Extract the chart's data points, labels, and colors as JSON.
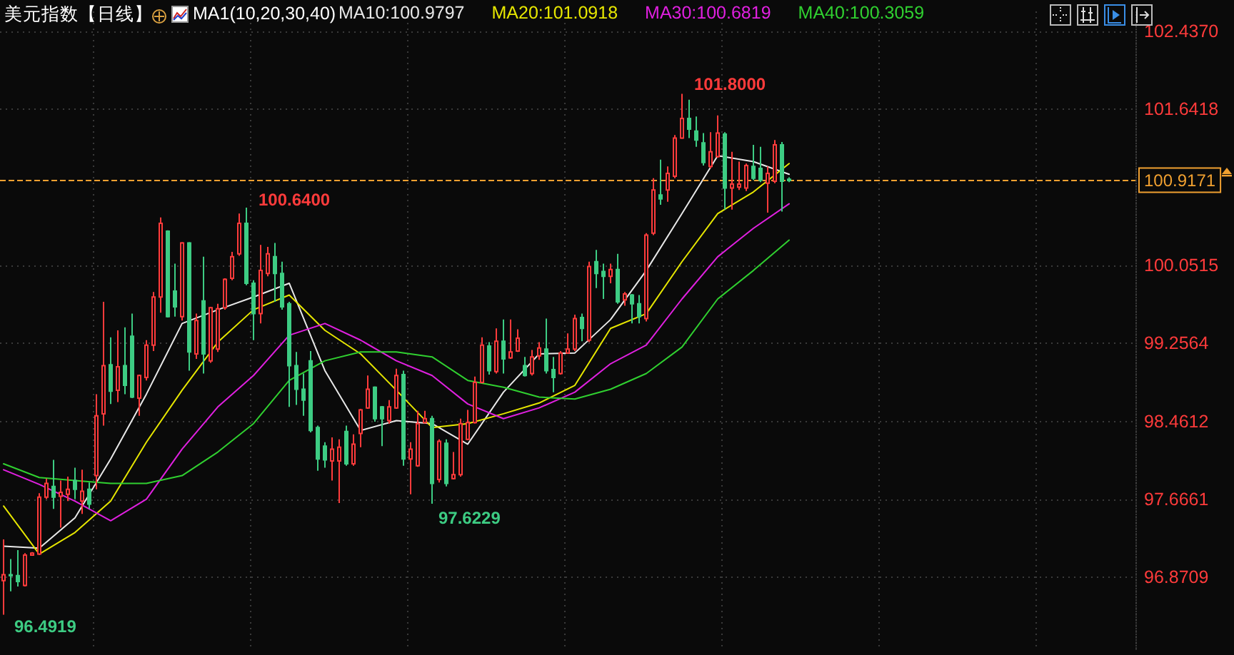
{
  "chart_data": {
    "type": "candlestick",
    "title": "美元指数【日线】",
    "subtitle": "MA1(10,20,30,40)",
    "categories": [
      null,
      null,
      null,
      null,
      null,
      null,
      null,
      null,
      null,
      null,
      null,
      null,
      null,
      null,
      null,
      null,
      null,
      null,
      null,
      null,
      null,
      null,
      null,
      null,
      null,
      null,
      null,
      null,
      null,
      null,
      null,
      null,
      null,
      null,
      null,
      null,
      null,
      null,
      null,
      null,
      null,
      null,
      null,
      null,
      null,
      null,
      null,
      null,
      null,
      null,
      null,
      null,
      null,
      null,
      null,
      null,
      null,
      null,
      null,
      null,
      null,
      null,
      null,
      null,
      null,
      null,
      null,
      null,
      null,
      null,
      null,
      null,
      null,
      null,
      null,
      null,
      null,
      null,
      null,
      null,
      null,
      null,
      null,
      null,
      null,
      null,
      null,
      null,
      null,
      null,
      null,
      null,
      null,
      null,
      null,
      null,
      null,
      null,
      null,
      null,
      null,
      null,
      null,
      null,
      null,
      null,
      null,
      null,
      null,
      null,
      null,
      null,
      null,
      null,
      null,
      null,
      null,
      null,
      null,
      null,
      null,
      null,
      null,
      null,
      null,
      null,
      null,
      null,
      null,
      null,
      null,
      null,
      null,
      null,
      null,
      null,
      null,
      null,
      null,
      null,
      null,
      null,
      null,
      null,
      null,
      null,
      null,
      null,
      null,
      null,
      null,
      null,
      null,
      null,
      null,
      null,
      null,
      null,
      null
    ],
    "series": [
      {
        "ohlc": [
          [
            96.84,
            97.26,
            96.4919,
            96.9
          ],
          [
            96.9,
            97.06,
            96.73,
            96.89
          ],
          [
            96.89,
            97.15,
            96.78,
            96.83
          ],
          [
            96.79,
            97.12,
            96.78,
            97.1
          ],
          [
            97.1,
            97.13,
            97.1,
            97.12
          ],
          [
            97.11,
            97.73,
            97.1,
            97.69
          ],
          [
            97.69,
            97.88,
            97.67,
            97.83
          ],
          [
            97.8,
            98.07,
            97.57,
            97.69
          ],
          [
            97.7,
            97.86,
            97.38,
            97.74
          ],
          [
            97.72,
            97.9,
            97.65,
            97.77
          ],
          [
            97.86,
            97.99,
            97.67,
            97.77
          ],
          [
            97.65,
            97.97,
            97.52,
            97.75
          ],
          [
            97.77,
            97.84,
            97.57,
            97.62
          ],
          [
            97.91,
            98.74,
            97.77,
            98.52
          ],
          [
            98.54,
            99.68,
            98.42,
            99.03
          ],
          [
            99.04,
            99.32,
            98.64,
            98.77
          ],
          [
            98.78,
            99.39,
            98.66,
            99.02
          ],
          [
            99.03,
            99.42,
            98.74,
            98.83
          ],
          [
            99.33,
            99.56,
            98.7,
            98.71
          ],
          [
            98.7,
            98.94,
            98.52,
            98.93
          ],
          [
            98.91,
            99.29,
            98.88,
            99.24
          ],
          [
            99.24,
            99.78,
            99.18,
            99.73
          ],
          [
            99.73,
            100.54,
            99.57,
            100.48
          ],
          [
            100.4,
            100.41,
            99.52,
            99.53
          ],
          [
            99.79,
            100.07,
            99.53,
            99.63
          ],
          [
            99.53,
            100.29,
            99.49,
            100.28
          ],
          [
            100.28,
            100.29,
            98.98,
            99.17
          ],
          [
            99.15,
            99.56,
            99.1,
            99.49
          ],
          [
            99.69,
            100.14,
            98.95,
            99.15
          ],
          [
            99.08,
            99.63,
            99.06,
            99.62
          ],
          [
            99.2,
            99.66,
            99.17,
            99.61
          ],
          [
            99.62,
            99.92,
            99.6,
            99.91
          ],
          [
            99.92,
            100.19,
            99.9,
            100.14
          ],
          [
            100.17,
            100.58,
            100.15,
            100.48
          ],
          [
            100.48,
            100.64,
            99.85,
            99.87
          ],
          [
            99.87,
            99.9,
            99.29,
            99.56
          ],
          [
            99.56,
            100.26,
            99.46,
            100.0
          ],
          [
            99.97,
            100.24,
            99.94,
            100.17
          ],
          [
            100.14,
            100.28,
            99.68,
            99.97
          ],
          [
            99.97,
            100.09,
            99.6,
            99.63
          ],
          [
            99.66,
            99.68,
            98.61,
            99.03
          ],
          [
            99.03,
            99.17,
            98.63,
            98.79
          ],
          [
            98.79,
            98.95,
            98.52,
            98.68
          ],
          [
            99.08,
            99.18,
            98.35,
            98.37
          ],
          [
            98.4,
            98.42,
            97.96,
            98.08
          ],
          [
            98.21,
            98.25,
            97.99,
            98.07
          ],
          [
            98.06,
            98.3,
            97.86,
            98.18
          ],
          [
            98.06,
            98.28,
            97.63,
            98.2
          ],
          [
            98.36,
            98.42,
            98.01,
            98.03
          ],
          [
            98.03,
            98.33,
            98.01,
            98.23
          ],
          [
            98.34,
            98.59,
            98.2,
            98.58
          ],
          [
            98.6,
            98.93,
            98.59,
            98.79
          ],
          [
            98.81,
            98.82,
            98.46,
            98.49
          ],
          [
            98.61,
            98.62,
            98.21,
            98.49
          ],
          [
            98.47,
            98.68,
            98.44,
            98.61
          ],
          [
            98.6,
            99.0,
            98.59,
            98.93
          ],
          [
            98.94,
            98.98,
            98.01,
            98.08
          ],
          [
            98.08,
            98.25,
            97.72,
            98.18
          ],
          [
            98.01,
            98.57,
            98.0,
            98.44
          ],
          [
            98.45,
            98.57,
            98.44,
            98.49
          ],
          [
            98.49,
            98.52,
            97.6229,
            97.83
          ],
          [
            97.87,
            98.28,
            97.84,
            98.26
          ],
          [
            98.24,
            98.28,
            97.8,
            97.83
          ],
          [
            97.88,
            98.15,
            97.87,
            97.92
          ],
          [
            97.92,
            98.49,
            97.9,
            98.44
          ],
          [
            98.28,
            98.58,
            98.27,
            98.45
          ],
          [
            98.45,
            98.92,
            98.44,
            98.86
          ],
          [
            98.86,
            99.32,
            98.85,
            99.24
          ],
          [
            99.23,
            99.27,
            98.94,
            98.98
          ],
          [
            98.97,
            99.41,
            98.95,
            99.28
          ],
          [
            99.28,
            99.5,
            98.95,
            99.1
          ],
          [
            99.11,
            99.5,
            99.1,
            99.17
          ],
          [
            99.18,
            99.4,
            99.17,
            99.31
          ],
          [
            99.03,
            99.12,
            98.92,
            98.93
          ],
          [
            98.95,
            99.19,
            98.93,
            99.12
          ],
          [
            99.13,
            99.27,
            99.09,
            99.21
          ],
          [
            99.2,
            99.51,
            98.95,
            98.98
          ],
          [
            98.99,
            99.12,
            98.76,
            98.91
          ],
          [
            98.95,
            99.18,
            98.94,
            99.16
          ],
          [
            99.16,
            99.36,
            99.15,
            99.2
          ],
          [
            99.2,
            99.55,
            99.18,
            99.51
          ],
          [
            99.52,
            99.56,
            99.28,
            99.41
          ],
          [
            99.29,
            100.09,
            99.27,
            100.04
          ],
          [
            100.09,
            100.21,
            99.82,
            99.97
          ],
          [
            99.99,
            100.07,
            99.71,
            99.94
          ],
          [
            99.94,
            100.07,
            99.87,
            100.01
          ],
          [
            100.01,
            100.17,
            99.66,
            99.68
          ],
          [
            99.7,
            99.78,
            99.64,
            99.76
          ],
          [
            99.75,
            99.76,
            99.46,
            99.66
          ],
          [
            99.66,
            99.75,
            99.46,
            99.53
          ],
          [
            99.51,
            100.38,
            99.48,
            100.36
          ],
          [
            100.38,
            100.94,
            100.36,
            100.82
          ],
          [
            100.77,
            101.13,
            100.67,
            100.73
          ],
          [
            100.82,
            101.06,
            100.7,
            100.99
          ],
          [
            100.96,
            101.38,
            100.94,
            101.35
          ],
          [
            101.35,
            101.8,
            101.34,
            101.55
          ],
          [
            101.55,
            101.74,
            101.35,
            101.44
          ],
          [
            101.42,
            101.57,
            101.26,
            101.33
          ],
          [
            101.3,
            101.4,
            101.07,
            101.1
          ],
          [
            101.06,
            101.41,
            101.04,
            101.21
          ],
          [
            101.16,
            101.58,
            101.15,
            101.4
          ],
          [
            101.39,
            101.41,
            100.62,
            100.84
          ],
          [
            100.84,
            101.21,
            100.62,
            100.88
          ],
          [
            100.85,
            101.11,
            100.82,
            100.88
          ],
          [
            100.84,
            101.09,
            100.81,
            101.07
          ],
          [
            101.06,
            101.28,
            100.92,
            100.94
          ],
          [
            101.04,
            101.26,
            100.9,
            100.92
          ],
          [
            100.89,
            101.06,
            100.59,
            100.99
          ],
          [
            100.91,
            101.33,
            100.89,
            101.28
          ],
          [
            101.28,
            101.31,
            100.6,
            100.91
          ],
          [
            100.93,
            100.95,
            100.9,
            100.9171
          ],
          null,
          null,
          null,
          null,
          null,
          null,
          null,
          null,
          null,
          null,
          null,
          null,
          null,
          null,
          null,
          null,
          null,
          null,
          null,
          null,
          null,
          null,
          null,
          null,
          null,
          null,
          null,
          null,
          null,
          null,
          null,
          null,
          null,
          null,
          null,
          null,
          null,
          null,
          null,
          null,
          null,
          null,
          null,
          null,
          null,
          null,
          null,
          null
        ]
      },
      {
        "type": "line",
        "name": "MA10:100.9797",
        "color": "#e8e8e8",
        "values": [
          97.19,
          null,
          null,
          null,
          null,
          97.17,
          null,
          null,
          null,
          null,
          97.48,
          null,
          null,
          null,
          null,
          98.08,
          null,
          null,
          null,
          null,
          98.74,
          null,
          null,
          null,
          null,
          99.46,
          null,
          null,
          null,
          null,
          99.6,
          null,
          null,
          null,
          null,
          99.73,
          null,
          null,
          null,
          null,
          99.87,
          null,
          null,
          null,
          null,
          98.98,
          null,
          null,
          null,
          null,
          98.37,
          null,
          null,
          null,
          null,
          98.47,
          null,
          null,
          null,
          null,
          98.44,
          null,
          null,
          null,
          null,
          98.23,
          null,
          null,
          null,
          null,
          98.76,
          null,
          null,
          null,
          null,
          99.15,
          null,
          null,
          null,
          null,
          99.16,
          null,
          null,
          null,
          null,
          99.5,
          null,
          null,
          null,
          null,
          100.0,
          null,
          null,
          null,
          null,
          100.58,
          null,
          null,
          null,
          null,
          101.17,
          null,
          null,
          null,
          null,
          101.11,
          null,
          null,
          null,
          null,
          100.98,
          null,
          null,
          null,
          null,
          null,
          null,
          null,
          null,
          null,
          null,
          null,
          null,
          null,
          null,
          null,
          null,
          null,
          null,
          null,
          null,
          null,
          null,
          null,
          null,
          null,
          null,
          null,
          null,
          null,
          null,
          null,
          null,
          null,
          null,
          null,
          null,
          null,
          null,
          null,
          null,
          null,
          null,
          null,
          null,
          null,
          null,
          null,
          null
        ]
      },
      {
        "type": "line",
        "name": "MA20:101.0918",
        "color": "#e6e600",
        "values": [
          97.6,
          null,
          null,
          null,
          null,
          97.11,
          null,
          null,
          null,
          null,
          97.33,
          null,
          null,
          null,
          null,
          97.65,
          null,
          null,
          null,
          null,
          98.25,
          null,
          null,
          null,
          null,
          98.78,
          null,
          null,
          null,
          null,
          99.27,
          null,
          null,
          null,
          null,
          99.6,
          null,
          null,
          null,
          null,
          99.75,
          null,
          null,
          null,
          null,
          99.39,
          null,
          null,
          null,
          null,
          99.15,
          null,
          null,
          null,
          null,
          98.78,
          null,
          null,
          null,
          null,
          98.4,
          null,
          null,
          null,
          null,
          98.44,
          null,
          null,
          null,
          null,
          98.54,
          null,
          null,
          null,
          null,
          98.65,
          null,
          null,
          null,
          null,
          98.83,
          null,
          null,
          null,
          null,
          99.41,
          null,
          null,
          null,
          null,
          99.56,
          null,
          null,
          null,
          null,
          100.09,
          null,
          null,
          null,
          null,
          100.58,
          null,
          null,
          null,
          null,
          100.8,
          null,
          null,
          null,
          null,
          101.09,
          null,
          null,
          null,
          null,
          null,
          null,
          null,
          null,
          null,
          null,
          null,
          null,
          null,
          null,
          null,
          null,
          null,
          null,
          null,
          null,
          null,
          null,
          null,
          null,
          null,
          null,
          null,
          null,
          null,
          null,
          null,
          null,
          null,
          null,
          null,
          null,
          null,
          null,
          null,
          null,
          null,
          null,
          null,
          null,
          null,
          null,
          null,
          null
        ]
      },
      {
        "type": "line",
        "name": "MA30:100.6819",
        "color": "#e020e0",
        "values": [
          97.97,
          null,
          null,
          null,
          null,
          97.82,
          null,
          null,
          null,
          null,
          97.65,
          null,
          null,
          null,
          null,
          97.45,
          null,
          null,
          null,
          null,
          97.67,
          null,
          null,
          null,
          null,
          98.18,
          null,
          null,
          null,
          null,
          98.61,
          null,
          null,
          null,
          null,
          98.93,
          null,
          null,
          null,
          null,
          99.34,
          null,
          null,
          null,
          null,
          99.46,
          null,
          null,
          null,
          null,
          99.29,
          null,
          null,
          null,
          null,
          99.08,
          null,
          null,
          null,
          null,
          98.93,
          null,
          null,
          null,
          null,
          98.64,
          null,
          null,
          null,
          null,
          98.49,
          null,
          null,
          null,
          null,
          98.6,
          null,
          null,
          null,
          null,
          98.76,
          null,
          null,
          null,
          null,
          99.05,
          null,
          null,
          null,
          null,
          99.24,
          null,
          null,
          null,
          null,
          99.71,
          null,
          null,
          null,
          null,
          100.14,
          null,
          null,
          null,
          null,
          100.43,
          null,
          null,
          null,
          null,
          100.68,
          null,
          null,
          null,
          null,
          null,
          null,
          null,
          null,
          null,
          null,
          null,
          null,
          null,
          null,
          null,
          null,
          null,
          null,
          null,
          null,
          null,
          null,
          null,
          null,
          null,
          null,
          null,
          null,
          null,
          null,
          null,
          null,
          null,
          null,
          null,
          null,
          null,
          null,
          null,
          null,
          null,
          null,
          null,
          null,
          null,
          null,
          null,
          null
        ]
      },
      {
        "type": "line",
        "name": "MA40:100.3059",
        "color": "#30d030",
        "values": [
          98.03,
          null,
          null,
          null,
          null,
          97.89,
          null,
          null,
          null,
          null,
          97.86,
          null,
          null,
          null,
          null,
          97.83,
          null,
          null,
          null,
          null,
          97.83,
          null,
          null,
          null,
          null,
          97.91,
          null,
          null,
          null,
          null,
          98.15,
          null,
          null,
          null,
          null,
          98.44,
          null,
          null,
          null,
          null,
          98.88,
          null,
          null,
          null,
          null,
          99.08,
          null,
          null,
          null,
          null,
          99.17,
          null,
          null,
          null,
          null,
          99.17,
          null,
          null,
          null,
          null,
          99.12,
          null,
          null,
          null,
          null,
          98.88,
          null,
          null,
          null,
          null,
          98.81,
          null,
          null,
          null,
          null,
          98.71,
          null,
          null,
          null,
          null,
          98.69,
          null,
          null,
          null,
          null,
          98.79,
          null,
          null,
          null,
          null,
          98.95,
          null,
          null,
          null,
          null,
          99.22,
          null,
          null,
          null,
          null,
          99.71,
          null,
          null,
          null,
          null,
          100.0,
          null,
          null,
          null,
          null,
          100.31,
          null,
          null,
          null,
          null,
          null,
          null,
          null,
          null,
          null,
          null,
          null,
          null,
          null,
          null,
          null,
          null,
          null,
          null,
          null,
          null,
          null,
          null,
          null,
          null,
          null,
          null,
          null,
          null,
          null,
          null,
          null,
          null,
          null,
          null,
          null,
          null,
          null,
          null,
          null,
          null,
          null,
          null,
          null,
          null,
          null,
          null,
          null,
          null
        ]
      }
    ],
    "ylim": [
      96.14,
      102.64
    ],
    "yticks": [
      96.8709,
      97.6661,
      98.4612,
      99.2564,
      100.0515,
      101.6418,
      {
        "value": 102.437,
        "label": "102.4370"
      }
    ],
    "ref_lines": [
      {
        "axis": "y",
        "value": 100.9171,
        "label": "100.9171",
        "color": "#f0a030",
        "line_style": "dashed"
      }
    ],
    "annotations": [
      "100.6400",
      "101.8000",
      "97.6229",
      "96.4919"
    ],
    "grid": true,
    "legend": "top",
    "tick_labels": "y"
  }
}
